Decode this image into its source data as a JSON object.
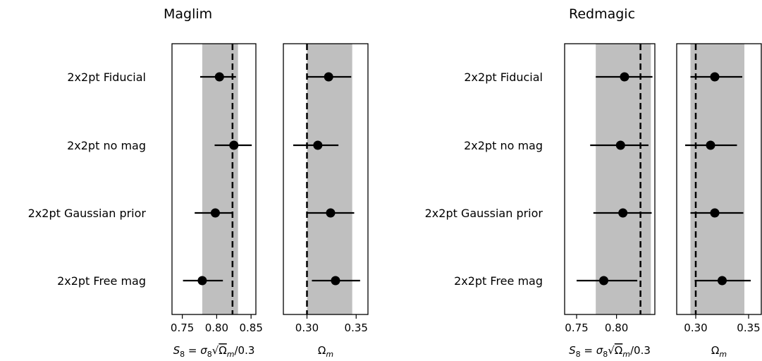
{
  "chart_data": [
    {
      "type": "errorbar",
      "title": "Maglim",
      "categories": [
        "2x2pt Fiducial",
        "2x2pt no mag",
        "2x2pt Gaussian prior",
        "2x2pt Free mag"
      ],
      "subplots": [
        {
          "xlabel": "S8 = σ8 √(Ωm/0.3)",
          "xlabel_main": "S",
          "xlabel_sub": "8",
          "xlabel_rest": " = σ",
          "xlabel_sub2": "8",
          "xlabel_sqrt": "√",
          "xlabel_inner": "Ω",
          "xlabel_inner_sub": "m",
          "xlabel_tail": "/0.3",
          "xlim": [
            0.735,
            0.857
          ],
          "xticks": [
            0.75,
            0.8,
            0.85
          ],
          "xtick_labels": [
            "0.75",
            "0.80",
            "0.85"
          ],
          "band": [
            0.779,
            0.831
          ],
          "reference_line": 0.823,
          "points": [
            {
              "center": 0.804,
              "low": 0.776,
              "high": 0.828
            },
            {
              "center": 0.825,
              "low": 0.797,
              "high": 0.851
            },
            {
              "center": 0.798,
              "low": 0.768,
              "high": 0.823
            },
            {
              "center": 0.779,
              "low": 0.751,
              "high": 0.809
            }
          ]
        },
        {
          "xlabel": "Ωm",
          "xlabel_main": "Ω",
          "xlabel_sub": "m",
          "xlim": [
            0.276,
            0.362
          ],
          "xticks": [
            0.3,
            0.35
          ],
          "xtick_labels": [
            "0.30",
            "0.35"
          ],
          "band": [
            0.3,
            0.346
          ],
          "reference_line": 0.3,
          "points": [
            {
              "center": 0.322,
              "low": 0.3,
              "high": 0.345
            },
            {
              "center": 0.311,
              "low": 0.286,
              "high": 0.332
            },
            {
              "center": 0.324,
              "low": 0.3,
              "high": 0.348
            },
            {
              "center": 0.329,
              "low": 0.305,
              "high": 0.354
            }
          ]
        }
      ]
    },
    {
      "type": "errorbar",
      "title": "Redmagic",
      "categories": [
        "2x2pt Fiducial",
        "2x2pt no mag",
        "2x2pt Gaussian prior",
        "2x2pt Free mag"
      ],
      "subplots": [
        {
          "xlabel": "S8 = σ8 √(Ωm/0.3)",
          "xlabel_main": "S",
          "xlabel_sub": "8",
          "xlabel_rest": " = σ",
          "xlabel_sub2": "8",
          "xlabel_sqrt": "√",
          "xlabel_inner": "Ω",
          "xlabel_inner_sub": "m",
          "xlabel_tail": "/0.3",
          "xlim": [
            0.735,
            0.848
          ],
          "xticks": [
            0.75,
            0.8
          ],
          "xtick_labels": [
            "0.75",
            "0.80"
          ],
          "band": [
            0.774,
            0.843
          ],
          "reference_line": 0.83,
          "points": [
            {
              "center": 0.81,
              "low": 0.774,
              "high": 0.845
            },
            {
              "center": 0.805,
              "low": 0.767,
              "high": 0.84
            },
            {
              "center": 0.808,
              "low": 0.771,
              "high": 0.844
            },
            {
              "center": 0.784,
              "low": 0.75,
              "high": 0.826
            }
          ]
        },
        {
          "xlabel": "Ωm",
          "xlabel_main": "Ω",
          "xlabel_sub": "m",
          "xlim": [
            0.282,
            0.362
          ],
          "xticks": [
            0.3,
            0.35
          ],
          "xtick_labels": [
            "0.30",
            "0.35"
          ],
          "band": [
            0.295,
            0.346
          ],
          "reference_line": 0.3,
          "points": [
            {
              "center": 0.318,
              "low": 0.295,
              "high": 0.344
            },
            {
              "center": 0.314,
              "low": 0.29,
              "high": 0.339
            },
            {
              "center": 0.318,
              "low": 0.295,
              "high": 0.345
            },
            {
              "center": 0.325,
              "low": 0.299,
              "high": 0.352
            }
          ]
        }
      ]
    }
  ]
}
